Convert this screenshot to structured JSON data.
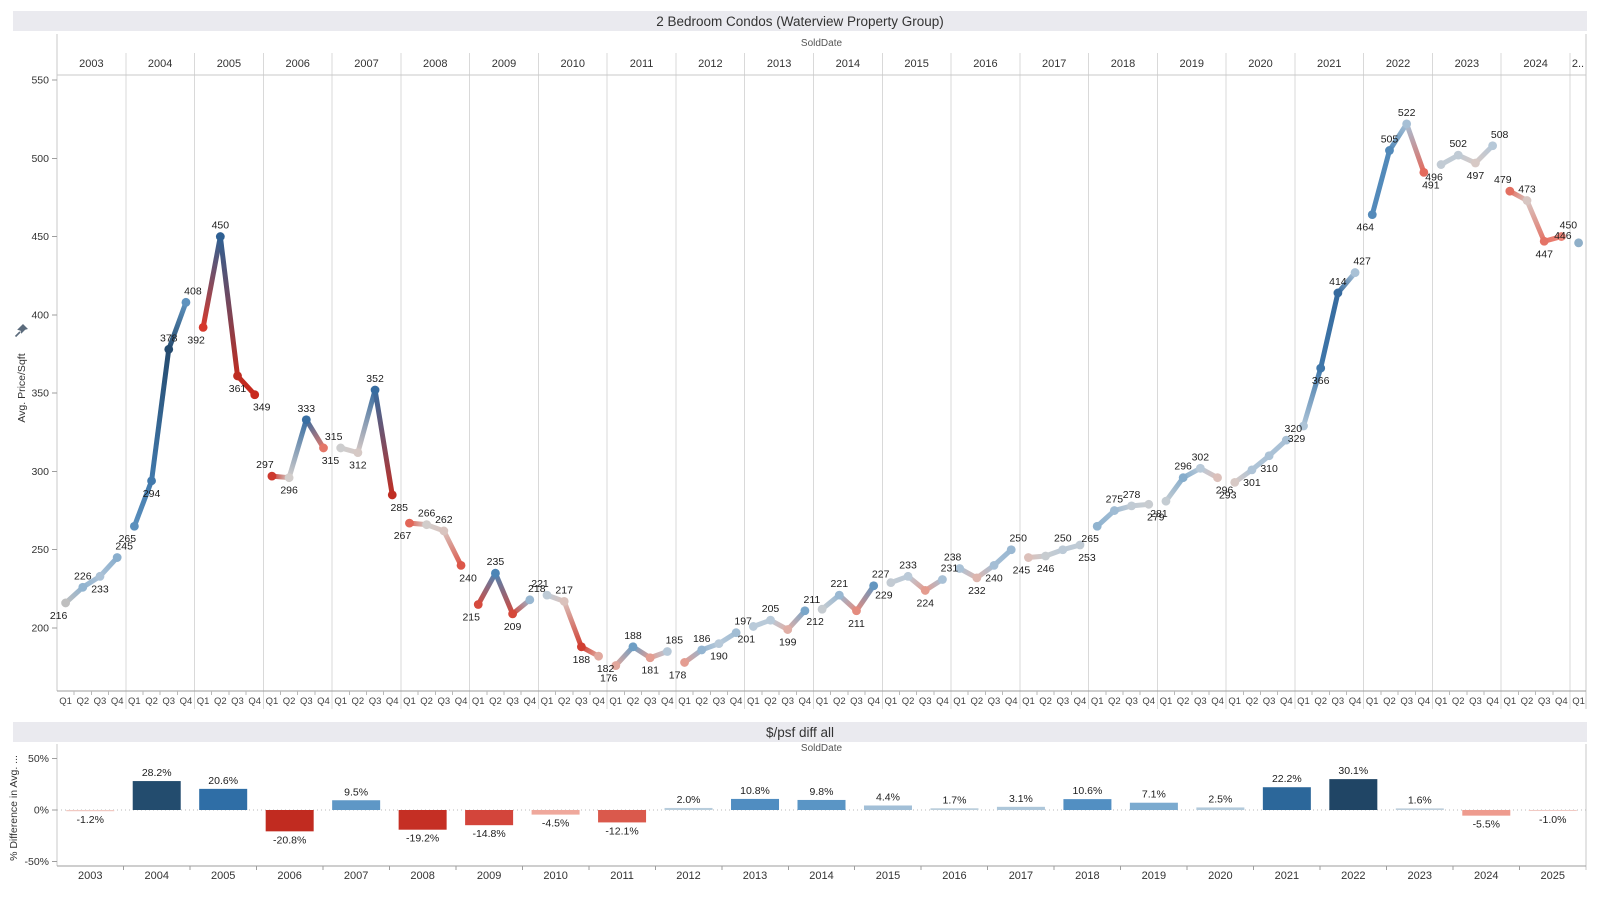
{
  "app": {
    "top_title": "2 Bedroom Condos (Waterview Property Group)",
    "bottom_title": "$/psf diff all",
    "sold_date_label": "SoldDate",
    "price_axis_label": "Avg. Price/Sqft",
    "diff_axis_label": "% Difference in Avg. ...",
    "pin_icon": "pushpin-icon"
  },
  "chart_data": [
    {
      "type": "line",
      "title": "2 Bedroom Condos (Waterview Property Group)",
      "xlabel": "SoldDate",
      "ylabel": "Avg. Price/Sqft",
      "ylim": [
        160,
        560
      ],
      "yticks": [
        200,
        250,
        300,
        350,
        400,
        450,
        500,
        550
      ],
      "quarter_labels": [
        "Q1",
        "Q2",
        "Q3",
        "Q4"
      ],
      "grid": "vertical-year-separators",
      "legend": "none",
      "years": [
        {
          "year": "2003",
          "values": [
            216,
            226,
            233,
            245
          ]
        },
        {
          "year": "2004",
          "values": [
            265,
            294,
            378,
            408
          ]
        },
        {
          "year": "2005",
          "values": [
            392,
            450,
            361,
            349
          ]
        },
        {
          "year": "2006",
          "values": [
            297,
            296,
            333,
            315
          ]
        },
        {
          "year": "2007",
          "values": [
            315,
            312,
            352,
            285
          ]
        },
        {
          "year": "2008",
          "values": [
            267,
            266,
            262,
            240
          ]
        },
        {
          "year": "2009",
          "values": [
            215,
            235,
            209,
            218
          ]
        },
        {
          "year": "2010",
          "values": [
            221,
            217,
            188,
            182
          ]
        },
        {
          "year": "2011",
          "values": [
            176,
            188,
            181,
            185
          ]
        },
        {
          "year": "2012",
          "values": [
            178,
            186,
            190,
            197
          ]
        },
        {
          "year": "2013",
          "values": [
            201,
            205,
            199,
            211
          ]
        },
        {
          "year": "2014",
          "values": [
            212,
            221,
            211,
            227
          ]
        },
        {
          "year": "2015",
          "values": [
            229,
            233,
            224,
            231
          ]
        },
        {
          "year": "2016",
          "values": [
            238,
            232,
            240,
            250
          ]
        },
        {
          "year": "2017",
          "values": [
            245,
            246,
            250,
            253
          ]
        },
        {
          "year": "2018",
          "values": [
            265,
            275,
            278,
            279
          ]
        },
        {
          "year": "2019",
          "values": [
            281,
            296,
            302,
            296
          ]
        },
        {
          "year": "2020",
          "values": [
            293,
            301,
            310,
            320
          ]
        },
        {
          "year": "2021",
          "values": [
            329,
            366,
            414,
            427
          ]
        },
        {
          "year": "2022",
          "values": [
            464,
            505,
            522,
            491
          ]
        },
        {
          "year": "2023",
          "values": [
            496,
            502,
            497,
            508
          ]
        },
        {
          "year": "2024",
          "values": [
            479,
            473,
            447,
            450
          ]
        },
        {
          "year": "2025",
          "values": [
            446
          ],
          "header": "2.."
        }
      ],
      "label_side_overrides": {
        "2008Q1": "below"
      },
      "color_overrides": {
        "2005Q1": "#d6382c",
        "2005Q4": "#c9291d",
        "2024Q4": "#ee8478",
        "2025Q1": "#8fafc8"
      },
      "first_point_color": "#bfbfbf",
      "color_stops_pct_change": [
        [
          -30,
          "#a81e14"
        ],
        [
          -20,
          "#bd2b20"
        ],
        [
          -14,
          "#d03c30"
        ],
        [
          -10,
          "#d74c3e"
        ],
        [
          -6,
          "#e3685a"
        ],
        [
          -4,
          "#e5998c"
        ],
        [
          -2,
          "#dcc0ba"
        ],
        [
          -0.5,
          "#d4cdca"
        ],
        [
          0.5,
          "#c6ccd1"
        ],
        [
          2,
          "#b9cad9"
        ],
        [
          4,
          "#9dbad3"
        ],
        [
          6,
          "#7aa6c9"
        ],
        [
          9,
          "#4f87b8"
        ],
        [
          12,
          "#3a71a5"
        ],
        [
          15,
          "#2e5f92"
        ],
        [
          20,
          "#285580"
        ],
        [
          29,
          "#254a6e"
        ]
      ]
    },
    {
      "type": "bar",
      "title": "$/psf diff all",
      "xlabel": "SoldDate",
      "ylabel": "% Difference in Avg.",
      "ylim": [
        -55,
        55
      ],
      "yticks": [
        50,
        0,
        -50
      ],
      "ytick_suffix": "%",
      "zero_line": "dotted",
      "legend": "none",
      "categories": [
        "2003",
        "2004",
        "2005",
        "2006",
        "2007",
        "2008",
        "2009",
        "2010",
        "2011",
        "2012",
        "2013",
        "2014",
        "2015",
        "2016",
        "2017",
        "2018",
        "2019",
        "2020",
        "2021",
        "2022",
        "2023",
        "2024",
        "2025"
      ],
      "values": [
        -1.2,
        28.2,
        20.6,
        -20.8,
        9.5,
        -19.2,
        -14.8,
        -4.5,
        -12.1,
        2.0,
        10.8,
        9.8,
        4.4,
        1.7,
        3.1,
        10.6,
        7.1,
        2.5,
        22.2,
        30.1,
        1.6,
        -5.5,
        -1.0
      ],
      "color_stops_pct": [
        [
          -30,
          "#b02015"
        ],
        [
          -21,
          "#c02a1f"
        ],
        [
          -19,
          "#c62f24"
        ],
        [
          -15,
          "#d2443a"
        ],
        [
          -12,
          "#da5a4d"
        ],
        [
          -8,
          "#e87a6b"
        ],
        [
          -5,
          "#efa295"
        ],
        [
          -2,
          "#efc5bd"
        ],
        [
          -0.5,
          "#f2cdc7"
        ],
        [
          0.5,
          "#cdd6dc"
        ],
        [
          2,
          "#b8cddc"
        ],
        [
          5,
          "#9cbcd6"
        ],
        [
          8,
          "#6da2cc"
        ],
        [
          11,
          "#4e8cc0"
        ],
        [
          16,
          "#3a76ac"
        ],
        [
          21,
          "#2e6da6"
        ],
        [
          25,
          "#28587f"
        ],
        [
          30,
          "#204565"
        ]
      ]
    }
  ],
  "style": {
    "band_bg": "#eaeaef",
    "separator_color": "#d9d9d9",
    "axis_color": "#9e9e9e",
    "light_line_color": "#c9c9c9",
    "tick_label_color": "#333333",
    "value_label_color": "#1c1c1c",
    "quarter_label_color": "#444444",
    "pin_color": "#5b6b7c"
  }
}
